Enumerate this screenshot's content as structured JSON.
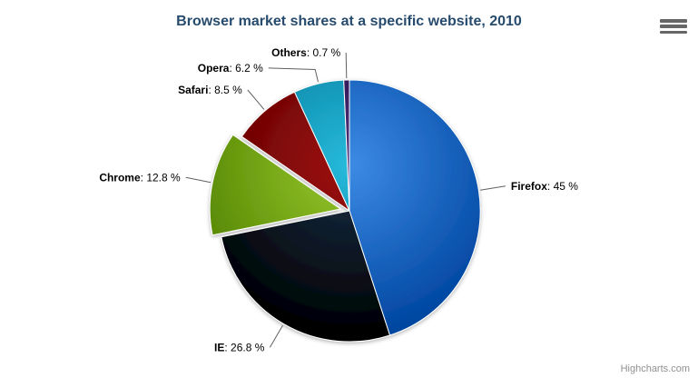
{
  "title": "Browser market shares at a specific website, 2010",
  "credits": "Highcharts.com",
  "context_menu": {
    "icon": "hamburger-icon"
  },
  "colors": {
    "background": "#ffffff",
    "title_text": "#274b6d",
    "label_text": "#000000",
    "connector": "#606060",
    "slice_border": "#ffffff",
    "credits_text": "#909090",
    "hamburger": "#666666"
  },
  "chart_data": {
    "type": "pie",
    "title": "Browser market shares at a specific website, 2010",
    "legend": "none",
    "label_format": "{name}: {value} %",
    "slices": [
      {
        "name": "Firefox",
        "value": 45,
        "display_value": "45 %",
        "color": "#2f7ed8",
        "sliced": false
      },
      {
        "name": "IE",
        "value": 26.8,
        "display_value": "26.8 %",
        "color": "#0d233a",
        "sliced": false
      },
      {
        "name": "Chrome",
        "value": 12.8,
        "display_value": "12.8 %",
        "color": "#8bbc21",
        "sliced": true
      },
      {
        "name": "Safari",
        "value": 8.5,
        "display_value": "8.5 %",
        "color": "#910000",
        "sliced": false
      },
      {
        "name": "Opera",
        "value": 6.2,
        "display_value": "6.2 %",
        "color": "#1aadce",
        "sliced": false
      },
      {
        "name": "Others",
        "value": 0.7,
        "display_value": "0.7 %",
        "color": "#492970",
        "sliced": false
      }
    ]
  }
}
